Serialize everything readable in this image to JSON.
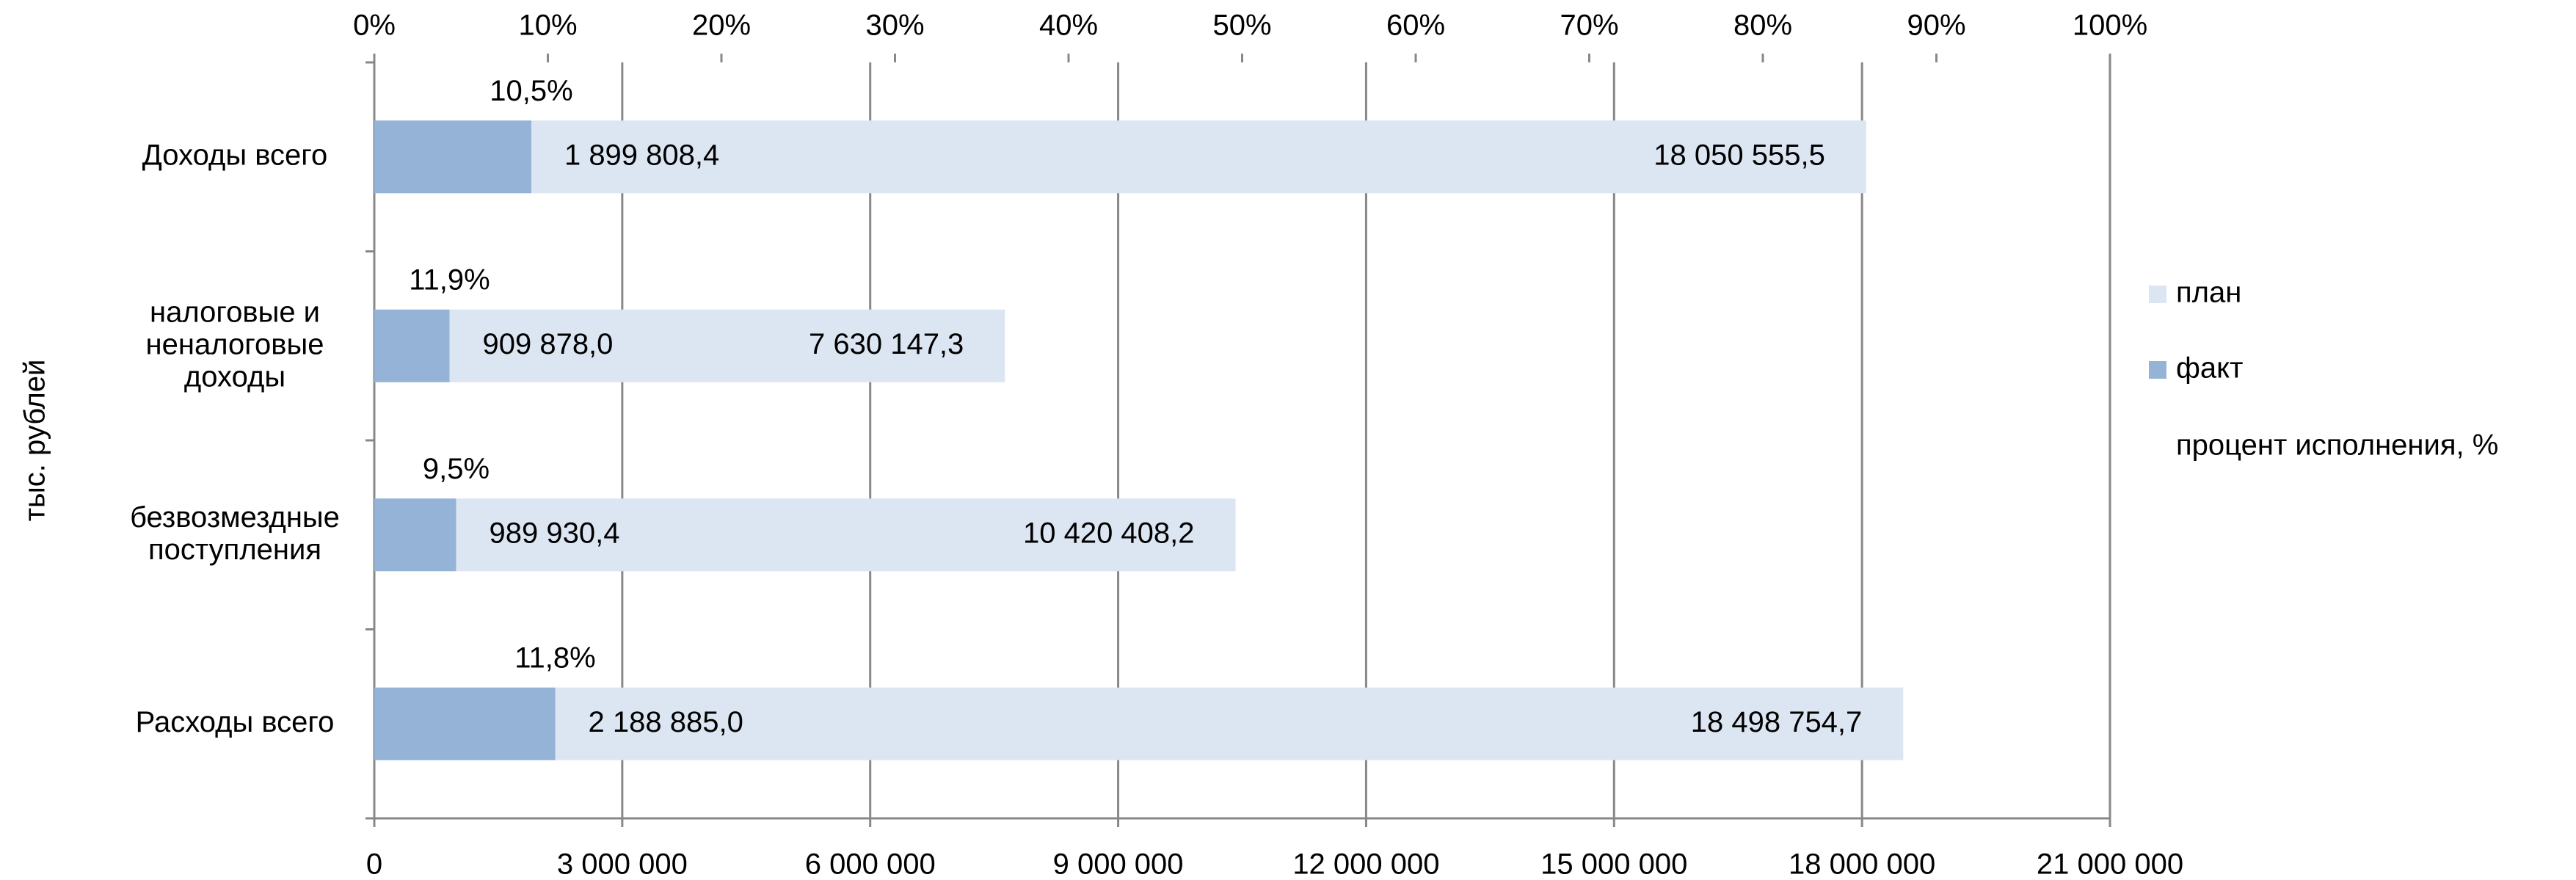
{
  "chart_data": {
    "type": "bar",
    "orientation": "horizontal",
    "ylabel": "тыс. рублей",
    "categories": [
      "Доходы всего",
      "налоговые и\nненалоговые\nдоходы",
      "безвозмездные\nпоступления",
      "Расходы всего"
    ],
    "series": [
      {
        "name": "план",
        "color": "#dce6f2",
        "values": [
          18050555.5,
          7630147.3,
          10420408.2,
          18498754.7
        ],
        "value_labels": [
          "18 050 555,5",
          "7 630 147,3",
          "10 420 408,2",
          "18 498 754,7"
        ]
      },
      {
        "name": "факт",
        "color": "#95b3d7",
        "values": [
          1899808.4,
          909878.0,
          989930.4,
          2188885.0
        ],
        "value_labels": [
          "1 899 808,4",
          "909 878,0",
          "989 930,4",
          "2 188 885,0"
        ]
      }
    ],
    "percent": {
      "name": "процент исполнения, %",
      "color": "#c00000",
      "values": [
        10.5,
        11.9,
        9.5,
        11.8
      ],
      "value_labels": [
        "10,5%",
        "11,9%",
        "9,5%",
        "11,8%"
      ]
    },
    "xlim": [
      0,
      21000000
    ],
    "xticks": [
      0,
      {
        "value": 3000000,
        "label": "3 000 000"
      },
      {
        "value": 6000000,
        "label": "6 000 000"
      },
      {
        "value": 9000000,
        "label": "9 000 000"
      },
      {
        "value": 12000000,
        "label": "12 000 000"
      },
      {
        "value": 15000000,
        "label": "15 000 000"
      },
      {
        "value": 18000000,
        "label": "18 000 000"
      },
      {
        "value": 21000000,
        "label": "21 000 000"
      }
    ],
    "x2lim": [
      0,
      100
    ],
    "x2ticks": [
      {
        "value": 0,
        "label": "0%"
      },
      {
        "value": 10,
        "label": "10%"
      },
      {
        "value": 20,
        "label": "20%"
      },
      {
        "value": 30,
        "label": "30%"
      },
      {
        "value": 40,
        "label": "40%"
      },
      {
        "value": 50,
        "label": "50%"
      },
      {
        "value": 60,
        "label": "60%"
      },
      {
        "value": 70,
        "label": "70%"
      },
      {
        "value": 80,
        "label": "80%"
      },
      {
        "value": 90,
        "label": "90%"
      },
      {
        "value": 100,
        "label": "100%"
      }
    ],
    "grid": true,
    "legend": "right"
  }
}
